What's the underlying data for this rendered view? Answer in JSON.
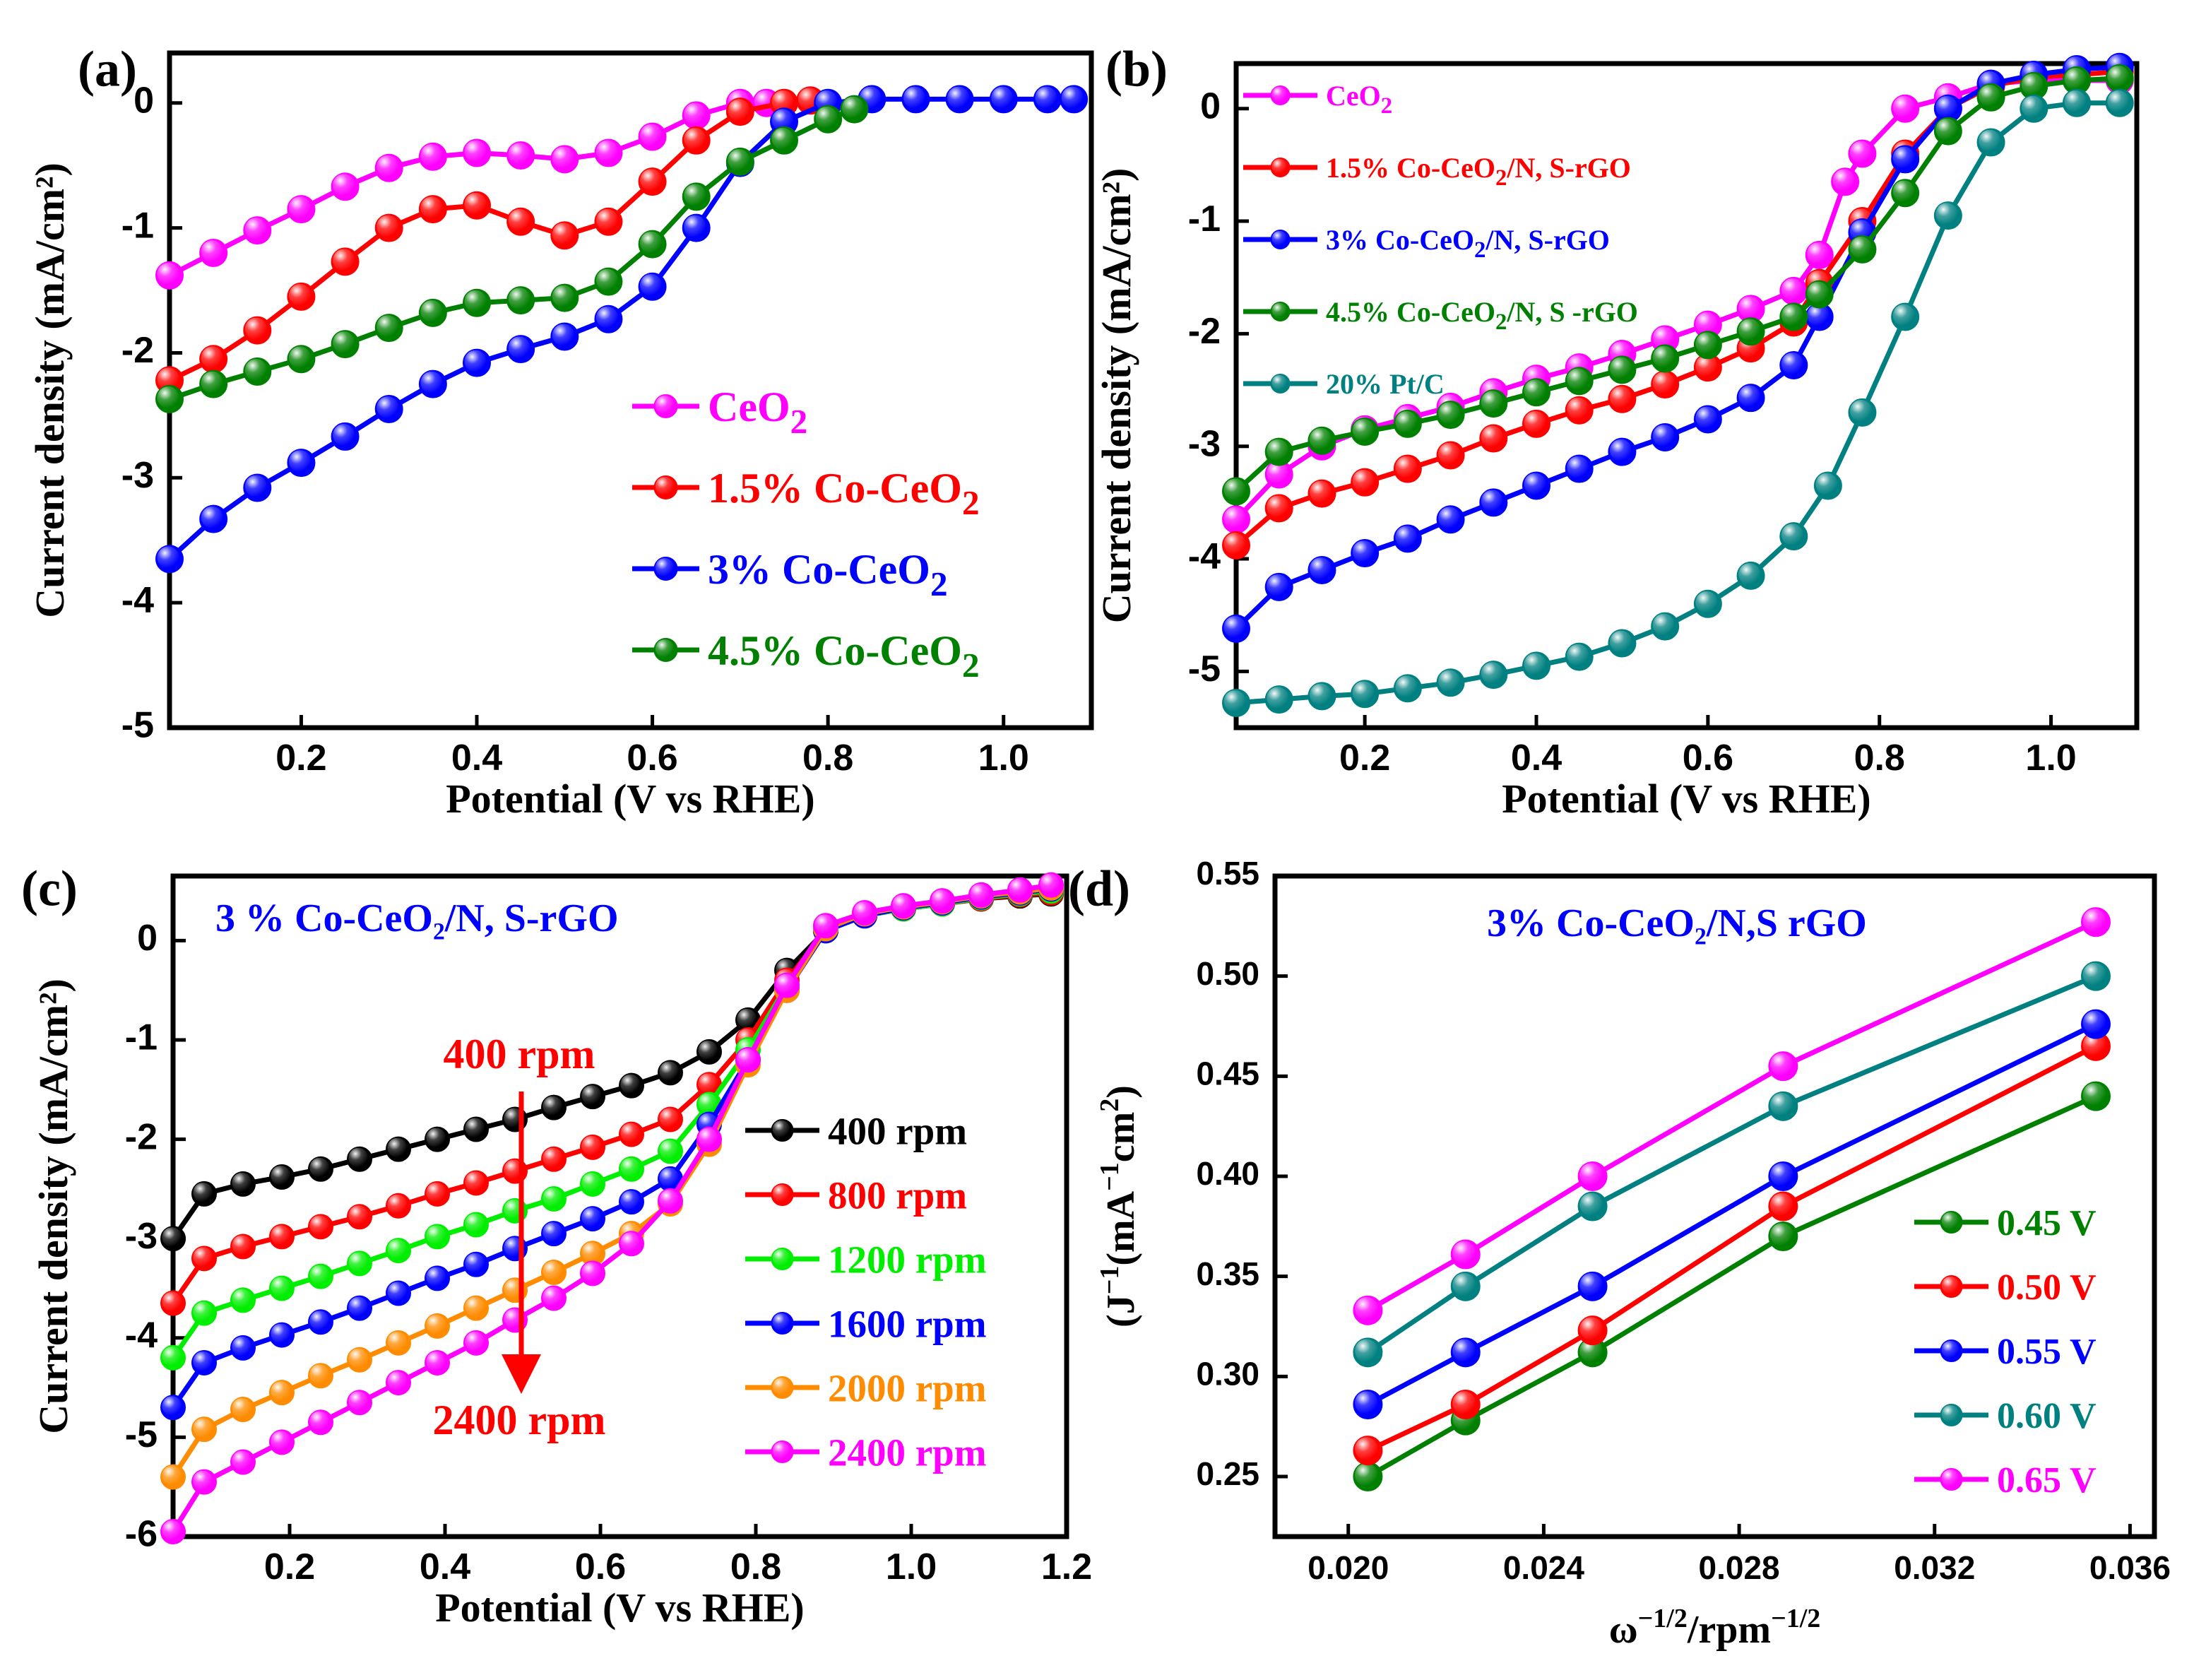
{
  "chart_data": [
    {
      "panel": "(a)",
      "type": "line",
      "xlabel": "Potential (V vs RHE)",
      "ylabel": "Current density (mA/cm²)",
      "xlim": [
        0.05,
        1.1
      ],
      "ylim": [
        -5,
        0.4
      ],
      "xticks": [
        "0.2",
        "0.4",
        "0.6",
        "0.8",
        "1.0"
      ],
      "yticks": [
        "0",
        "-1",
        "-2",
        "-3",
        "-4",
        "-5"
      ],
      "legend_position": "center-right",
      "series": [
        {
          "name": "CeO",
          "sub": "2",
          "suffix": "",
          "color": "#ff00ff",
          "x": [
            0.05,
            0.1,
            0.15,
            0.2,
            0.25,
            0.3,
            0.35,
            0.4,
            0.45,
            0.5,
            0.55,
            0.6,
            0.65,
            0.7,
            0.73
          ],
          "y": [
            -1.38,
            -1.2,
            -1.02,
            -0.85,
            -0.67,
            -0.52,
            -0.43,
            -0.4,
            -0.42,
            -0.45,
            -0.4,
            -0.27,
            -0.1,
            0.0,
            0.0
          ]
        },
        {
          "name": "1.5% Co-CeO",
          "sub": "2",
          "suffix": "",
          "color": "#ff0000",
          "x": [
            0.05,
            0.1,
            0.15,
            0.2,
            0.25,
            0.3,
            0.35,
            0.4,
            0.45,
            0.5,
            0.55,
            0.6,
            0.65,
            0.7,
            0.75,
            0.78
          ],
          "y": [
            -2.22,
            -2.05,
            -1.82,
            -1.55,
            -1.27,
            -1.0,
            -0.85,
            -0.82,
            -0.95,
            -1.06,
            -0.95,
            -0.63,
            -0.3,
            -0.07,
            0.0,
            0.02
          ]
        },
        {
          "name": "3% Co-CeO",
          "sub": "2",
          "suffix": "",
          "color": "#0000ff",
          "x": [
            0.05,
            0.1,
            0.15,
            0.2,
            0.25,
            0.3,
            0.35,
            0.4,
            0.45,
            0.5,
            0.55,
            0.6,
            0.65,
            0.7,
            0.75,
            0.8,
            0.85,
            0.9,
            0.95,
            1.0,
            1.05,
            1.08
          ],
          "y": [
            -3.65,
            -3.33,
            -3.08,
            -2.88,
            -2.67,
            -2.45,
            -2.25,
            -2.08,
            -1.97,
            -1.87,
            -1.73,
            -1.47,
            -1.0,
            -0.48,
            -0.15,
            0.0,
            0.03,
            0.03,
            0.03,
            0.03,
            0.03,
            0.03
          ]
        },
        {
          "name": "4.5% Co-CeO",
          "sub": "2",
          "suffix": "",
          "color": "#008000",
          "x": [
            0.05,
            0.1,
            0.15,
            0.2,
            0.25,
            0.3,
            0.35,
            0.4,
            0.45,
            0.5,
            0.55,
            0.6,
            0.65,
            0.7,
            0.75,
            0.8,
            0.83
          ],
          "y": [
            -2.37,
            -2.25,
            -2.15,
            -2.05,
            -1.93,
            -1.8,
            -1.68,
            -1.6,
            -1.58,
            -1.56,
            -1.43,
            -1.13,
            -0.75,
            -0.47,
            -0.3,
            -0.13,
            -0.05
          ]
        }
      ]
    },
    {
      "panel": "(b)",
      "type": "line",
      "xlabel": "Potential (V vs RHE)",
      "ylabel": "Current density (mA/cm²)",
      "xlim": [
        0.05,
        1.1
      ],
      "ylim": [
        -5.5,
        0.4
      ],
      "xticks": [
        "0.2",
        "0.4",
        "0.6",
        "0.8",
        "1.0"
      ],
      "yticks": [
        "0",
        "-1",
        "-2",
        "-3",
        "-4",
        "-5"
      ],
      "legend_position": "top-left",
      "series": [
        {
          "name": "CeO",
          "sub": "2",
          "suffix": "",
          "color": "#ff00ff",
          "x": [
            0.05,
            0.1,
            0.15,
            0.2,
            0.25,
            0.3,
            0.35,
            0.4,
            0.45,
            0.5,
            0.55,
            0.6,
            0.65,
            0.7,
            0.73,
            0.76,
            0.78,
            0.83,
            0.88,
            0.93,
            0.98,
            1.03,
            1.08
          ],
          "y": [
            -3.65,
            -3.25,
            -3.0,
            -2.85,
            -2.75,
            -2.65,
            -2.52,
            -2.4,
            -2.3,
            -2.18,
            -2.05,
            -1.92,
            -1.78,
            -1.62,
            -1.3,
            -0.65,
            -0.4,
            0.0,
            0.1,
            0.22,
            0.25,
            0.25,
            0.25
          ]
        },
        {
          "name": "1.5% Co-CeO",
          "sub": "2",
          "suffix": "/N, S-rGO",
          "color": "#ff0000",
          "x": [
            0.05,
            0.1,
            0.15,
            0.2,
            0.25,
            0.3,
            0.35,
            0.4,
            0.45,
            0.5,
            0.55,
            0.6,
            0.65,
            0.7,
            0.73,
            0.78,
            0.83,
            0.88,
            0.93,
            0.98,
            1.03,
            1.08
          ],
          "y": [
            -3.88,
            -3.55,
            -3.42,
            -3.32,
            -3.2,
            -3.08,
            -2.93,
            -2.8,
            -2.68,
            -2.58,
            -2.45,
            -2.3,
            -2.13,
            -1.9,
            -1.55,
            -1.0,
            -0.4,
            0.0,
            0.2,
            0.28,
            0.3,
            0.33
          ]
        },
        {
          "name": "3% Co-CeO",
          "sub": "2",
          "suffix": "/N, S-rGO",
          "color": "#0000ff",
          "x": [
            0.05,
            0.1,
            0.15,
            0.2,
            0.25,
            0.3,
            0.35,
            0.4,
            0.45,
            0.5,
            0.55,
            0.6,
            0.65,
            0.7,
            0.73,
            0.78,
            0.83,
            0.88,
            0.93,
            0.98,
            1.03,
            1.08
          ],
          "y": [
            -4.62,
            -4.25,
            -4.1,
            -3.95,
            -3.82,
            -3.65,
            -3.5,
            -3.35,
            -3.2,
            -3.05,
            -2.92,
            -2.76,
            -2.57,
            -2.28,
            -1.85,
            -1.1,
            -0.45,
            0.0,
            0.22,
            0.3,
            0.35,
            0.37
          ]
        },
        {
          "name": "4.5% Co-CeO",
          "sub": "2",
          "suffix": "/N, S -rGO",
          "color": "#008000",
          "x": [
            0.05,
            0.1,
            0.15,
            0.2,
            0.25,
            0.3,
            0.35,
            0.4,
            0.45,
            0.5,
            0.55,
            0.6,
            0.65,
            0.7,
            0.73,
            0.78,
            0.83,
            0.88,
            0.93,
            0.98,
            1.03,
            1.08
          ],
          "y": [
            -3.4,
            -3.05,
            -2.95,
            -2.87,
            -2.8,
            -2.72,
            -2.62,
            -2.52,
            -2.42,
            -2.32,
            -2.22,
            -2.1,
            -1.98,
            -1.85,
            -1.65,
            -1.25,
            -0.75,
            -0.2,
            0.1,
            0.2,
            0.25,
            0.27
          ]
        },
        {
          "name": "20% Pt/C",
          "sub": "",
          "suffix": "",
          "color": "#008080",
          "x": [
            0.05,
            0.1,
            0.15,
            0.2,
            0.25,
            0.3,
            0.35,
            0.4,
            0.45,
            0.5,
            0.55,
            0.6,
            0.65,
            0.7,
            0.74,
            0.78,
            0.83,
            0.88,
            0.93,
            0.98,
            1.03,
            1.08
          ],
          "y": [
            -5.28,
            -5.25,
            -5.22,
            -5.2,
            -5.15,
            -5.1,
            -5.03,
            -4.95,
            -4.87,
            -4.75,
            -4.6,
            -4.4,
            -4.15,
            -3.8,
            -3.35,
            -2.7,
            -1.85,
            -0.95,
            -0.3,
            0.0,
            0.05,
            0.05
          ]
        }
      ]
    },
    {
      "panel": "(c)",
      "type": "line",
      "title": "3 % Co-CeO₂/N, S-rGO",
      "xlabel": "Potential (V vs RHE)",
      "ylabel": "Current density (mA/cm²)",
      "xlim": [
        0.05,
        1.2
      ],
      "ylim": [
        -6,
        0.65
      ],
      "xticks": [
        "0.2",
        "0.4",
        "0.6",
        "0.8",
        "1.0",
        "1.2"
      ],
      "yticks": [
        "0",
        "-1",
        "-2",
        "-3",
        "-4",
        "-5",
        "-6"
      ],
      "annotations": [
        "400 rpm",
        "2400 rpm"
      ],
      "legend_position": "center-right",
      "series": [
        {
          "name": "400 rpm",
          "color": "#000000",
          "x": [
            0.05,
            0.09,
            0.14,
            0.19,
            0.24,
            0.29,
            0.34,
            0.39,
            0.44,
            0.49,
            0.54,
            0.59,
            0.64,
            0.69,
            0.74,
            0.79,
            0.84,
            0.89,
            0.94,
            0.99,
            1.04,
            1.09,
            1.14,
            1.18
          ],
          "y": [
            -3.0,
            -2.55,
            -2.45,
            -2.38,
            -2.3,
            -2.2,
            -2.1,
            -2.0,
            -1.9,
            -1.8,
            -1.68,
            -1.57,
            -1.46,
            -1.33,
            -1.12,
            -0.8,
            -0.3,
            0.1,
            0.25,
            0.32,
            0.37,
            0.42,
            0.45,
            0.47
          ]
        },
        {
          "name": "800 rpm",
          "color": "#ff0000",
          "x": [
            0.05,
            0.09,
            0.14,
            0.19,
            0.24,
            0.29,
            0.34,
            0.39,
            0.44,
            0.49,
            0.54,
            0.59,
            0.64,
            0.69,
            0.74,
            0.79,
            0.84,
            0.89,
            0.94,
            0.99,
            1.04,
            1.09,
            1.14,
            1.18
          ],
          "y": [
            -3.65,
            -3.2,
            -3.08,
            -2.98,
            -2.88,
            -2.78,
            -2.67,
            -2.55,
            -2.44,
            -2.32,
            -2.2,
            -2.08,
            -1.95,
            -1.8,
            -1.45,
            -1.0,
            -0.4,
            0.1,
            0.25,
            0.32,
            0.37,
            0.42,
            0.46,
            0.48
          ]
        },
        {
          "name": "1200 rpm",
          "color": "#00ee00",
          "x": [
            0.05,
            0.09,
            0.14,
            0.19,
            0.24,
            0.29,
            0.34,
            0.39,
            0.44,
            0.49,
            0.54,
            0.59,
            0.64,
            0.69,
            0.74,
            0.79,
            0.84,
            0.89,
            0.94,
            0.99,
            1.04,
            1.09,
            1.14,
            1.18
          ],
          "y": [
            -4.2,
            -3.75,
            -3.62,
            -3.5,
            -3.38,
            -3.25,
            -3.12,
            -2.98,
            -2.86,
            -2.72,
            -2.6,
            -2.45,
            -2.3,
            -2.12,
            -1.65,
            -1.1,
            -0.45,
            0.1,
            0.25,
            0.32,
            0.37,
            0.43,
            0.47,
            0.5
          ]
        },
        {
          "name": "1600 rpm",
          "color": "#0000ff",
          "x": [
            0.05,
            0.09,
            0.14,
            0.19,
            0.24,
            0.29,
            0.34,
            0.39,
            0.44,
            0.49,
            0.54,
            0.59,
            0.64,
            0.69,
            0.74,
            0.79,
            0.84,
            0.89,
            0.94,
            0.99,
            1.04,
            1.09,
            1.14,
            1.18
          ],
          "y": [
            -4.7,
            -4.25,
            -4.1,
            -3.97,
            -3.84,
            -3.7,
            -3.55,
            -3.4,
            -3.26,
            -3.1,
            -2.95,
            -2.8,
            -2.63,
            -2.4,
            -1.85,
            -1.2,
            -0.5,
            0.1,
            0.25,
            0.33,
            0.38,
            0.44,
            0.48,
            0.52
          ]
        },
        {
          "name": "2000 rpm",
          "color": "#ff8c00",
          "x": [
            0.05,
            0.09,
            0.14,
            0.19,
            0.24,
            0.29,
            0.34,
            0.39,
            0.44,
            0.49,
            0.54,
            0.59,
            0.64,
            0.69,
            0.74,
            0.79,
            0.84,
            0.89,
            0.94,
            0.99,
            1.04,
            1.09,
            1.14,
            1.18
          ],
          "y": [
            -5.4,
            -4.92,
            -4.72,
            -4.55,
            -4.38,
            -4.22,
            -4.05,
            -3.88,
            -3.7,
            -3.52,
            -3.34,
            -3.15,
            -2.95,
            -2.65,
            -2.05,
            -1.25,
            -0.5,
            0.12,
            0.27,
            0.34,
            0.39,
            0.45,
            0.49,
            0.53
          ]
        },
        {
          "name": "2400 rpm",
          "color": "#ff00ff",
          "x": [
            0.05,
            0.09,
            0.14,
            0.19,
            0.24,
            0.29,
            0.34,
            0.39,
            0.44,
            0.49,
            0.54,
            0.59,
            0.64,
            0.69,
            0.74,
            0.79,
            0.84,
            0.89,
            0.94,
            0.99,
            1.04,
            1.09,
            1.14,
            1.18
          ],
          "y": [
            -5.95,
            -5.45,
            -5.25,
            -5.05,
            -4.85,
            -4.65,
            -4.45,
            -4.25,
            -4.05,
            -3.82,
            -3.6,
            -3.35,
            -3.05,
            -2.62,
            -2.0,
            -1.2,
            -0.45,
            0.15,
            0.28,
            0.35,
            0.4,
            0.46,
            0.51,
            0.56
          ]
        }
      ]
    },
    {
      "panel": "(d)",
      "type": "line",
      "title": "3% Co-CeO₂/N,S rGO",
      "xlabel": "ω^-1/2/rpm^-1/2",
      "ylabel": "(J^-1(mA^-1cm^2)",
      "xlim": [
        0.0185,
        0.0365
      ],
      "ylim": [
        0.22,
        0.55
      ],
      "xticks": [
        "0.020",
        "0.024",
        "0.028",
        "0.032",
        "0.036"
      ],
      "yticks": [
        "0.25",
        "0.30",
        "0.35",
        "0.40",
        "0.45",
        "0.50",
        "0.55"
      ],
      "legend_position": "bottom-right",
      "series": [
        {
          "name": "0.45 V",
          "color": "#008000",
          "x": [
            0.0204,
            0.0224,
            0.025,
            0.0289,
            0.0353
          ],
          "y": [
            0.25,
            0.278,
            0.312,
            0.37,
            0.44
          ]
        },
        {
          "name": "0.50 V",
          "color": "#ff0000",
          "x": [
            0.0204,
            0.0224,
            0.025,
            0.0289,
            0.0353
          ],
          "y": [
            0.263,
            0.286,
            0.323,
            0.385,
            0.465
          ]
        },
        {
          "name": "0.55 V",
          "color": "#0000ff",
          "x": [
            0.0204,
            0.0224,
            0.025,
            0.0289,
            0.0353
          ],
          "y": [
            0.286,
            0.312,
            0.345,
            0.4,
            0.476
          ]
        },
        {
          "name": "0.60 V",
          "color": "#008080",
          "x": [
            0.0204,
            0.0224,
            0.025,
            0.0289,
            0.0353
          ],
          "y": [
            0.312,
            0.345,
            0.385,
            0.435,
            0.5
          ]
        },
        {
          "name": "0.65 V",
          "color": "#ff00ff",
          "x": [
            0.0204,
            0.0224,
            0.025,
            0.0289,
            0.0353
          ],
          "y": [
            0.333,
            0.361,
            0.4,
            0.455,
            0.527
          ]
        }
      ]
    }
  ]
}
